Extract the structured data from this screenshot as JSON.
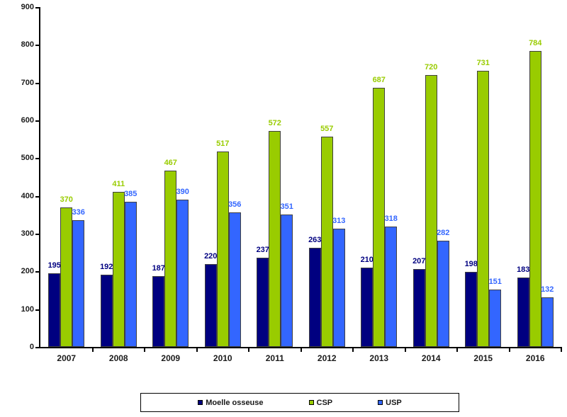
{
  "chart_data": {
    "type": "bar",
    "title": "",
    "xlabel": "",
    "ylabel": "",
    "categories": [
      "2007",
      "2008",
      "2009",
      "2010",
      "2011",
      "2012",
      "2013",
      "2014",
      "2015",
      "2016"
    ],
    "series": [
      {
        "name": "Moelle osseuse",
        "color": "#000080",
        "values": [
          195,
          192,
          187,
          220,
          237,
          263,
          210,
          207,
          198,
          183
        ]
      },
      {
        "name": "CSP",
        "color": "#99CC00",
        "values": [
          370,
          411,
          467,
          517,
          572,
          557,
          687,
          720,
          731,
          784
        ]
      },
      {
        "name": "USP",
        "color": "#3366FF",
        "values": [
          336,
          385,
          390,
          356,
          351,
          313,
          318,
          282,
          151,
          132
        ]
      }
    ],
    "ylim": [
      0,
      900
    ],
    "ytick_step": 100,
    "grid": false,
    "data_labels": true,
    "legend_position": "bottom",
    "axis_color": "#000000",
    "bar_border_color": "#404040"
  }
}
